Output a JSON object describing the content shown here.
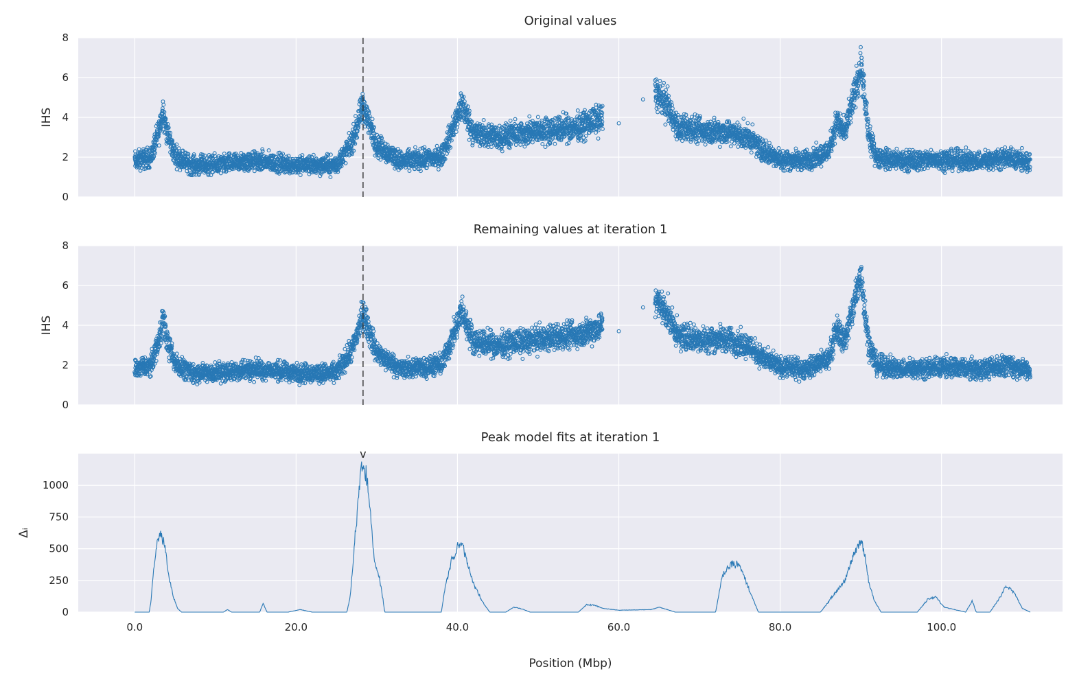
{
  "colors": {
    "series": "#2878b5",
    "background": "#eaeaf2",
    "grid": "#ffffff",
    "marker_line": "#333333"
  },
  "chart_data": [
    {
      "type": "scatter",
      "title": "Original values",
      "xlabel": "",
      "ylabel": "IHS",
      "xlim": [
        -7,
        115
      ],
      "ylim": [
        0,
        8
      ],
      "yticks": [
        "0",
        "2",
        "4",
        "6",
        "8"
      ],
      "grid": true,
      "vline_x": 28.3,
      "segments": [
        {
          "x": [
            0,
            2,
            3,
            3.5,
            4,
            5,
            7,
            10,
            15,
            20,
            25,
            27,
            28.3,
            30,
            33,
            36,
            38,
            40,
            40.5,
            42,
            45,
            50,
            55,
            58
          ],
          "y": [
            1.8,
            2.0,
            3.3,
            4.4,
            3.2,
            2.1,
            1.6,
            1.6,
            1.8,
            1.6,
            1.6,
            2.8,
            4.6,
            2.6,
            1.8,
            1.9,
            2.0,
            4.0,
            4.7,
            3.2,
            3.0,
            3.3,
            3.5,
            4.0
          ]
        },
        {
          "x": [
            64.5,
            66,
            67.5,
            68,
            70,
            73,
            76,
            78,
            80,
            83,
            86,
            87,
            88,
            89,
            90,
            91,
            92,
            95,
            100,
            105,
            108,
            111
          ],
          "y": [
            5.3,
            4.6,
            3.3,
            3.5,
            3.3,
            3.3,
            3.0,
            2.3,
            1.9,
            1.8,
            2.3,
            3.8,
            3.2,
            4.8,
            6.6,
            3.0,
            2.0,
            1.8,
            1.9,
            1.8,
            2.0,
            1.7
          ]
        }
      ]
    },
    {
      "type": "scatter",
      "title": "Remaining values at iteration 1",
      "xlabel": "",
      "ylabel": "IHS",
      "xlim": [
        -7,
        115
      ],
      "ylim": [
        0,
        8
      ],
      "yticks": [
        "0",
        "2",
        "4",
        "6",
        "8"
      ],
      "grid": true,
      "vline_x": 28.3,
      "segments": [
        {
          "x": [
            0,
            2,
            3,
            3.5,
            4,
            5,
            7,
            10,
            15,
            20,
            25,
            27,
            28.3,
            30,
            33,
            36,
            38,
            40,
            40.5,
            42,
            45,
            50,
            55,
            58
          ],
          "y": [
            1.8,
            2.0,
            3.3,
            4.4,
            3.2,
            2.1,
            1.6,
            1.6,
            1.8,
            1.6,
            1.6,
            2.8,
            4.6,
            2.6,
            1.8,
            1.9,
            2.0,
            4.0,
            4.7,
            3.2,
            3.0,
            3.3,
            3.5,
            4.0
          ]
        },
        {
          "x": [
            64.5,
            66,
            67.5,
            68,
            70,
            73,
            76,
            78,
            80,
            83,
            86,
            87,
            88,
            89,
            90,
            91,
            92,
            95,
            100,
            105,
            108,
            111
          ],
          "y": [
            5.3,
            4.6,
            3.3,
            3.5,
            3.3,
            3.3,
            3.0,
            2.3,
            1.9,
            1.8,
            2.3,
            3.8,
            3.2,
            4.8,
            6.6,
            3.0,
            2.0,
            1.8,
            1.9,
            1.8,
            2.0,
            1.7
          ]
        }
      ]
    },
    {
      "type": "line",
      "title": "Peak model fits at iteration 1",
      "xlabel": "Position (Mbp)",
      "ylabel": "Δᵢ",
      "xlim": [
        -7,
        115
      ],
      "ylim": [
        0,
        1250
      ],
      "yticks": [
        "0",
        "250",
        "500",
        "750",
        "1000"
      ],
      "xticks": [
        "0.0",
        "20.0",
        "40.0",
        "60.0",
        "80.0",
        "100.0"
      ],
      "grid": true,
      "peak_marker": {
        "x": 28.3,
        "label": "v"
      },
      "x": [
        0,
        1.8,
        2.0,
        2.3,
        2.8,
        3.3,
        3.8,
        4.3,
        4.8,
        5.3,
        5.8,
        6.0,
        11,
        11.5,
        12,
        15.5,
        15.9,
        16.4,
        19,
        20.5,
        22,
        26.3,
        26.7,
        27.2,
        27.7,
        28.0,
        28.3,
        28.7,
        29.2,
        29.7,
        30.4,
        31,
        33,
        38,
        38.5,
        39.3,
        39.7,
        40.2,
        40.6,
        41.2,
        42,
        43,
        44,
        46,
        47,
        48,
        49,
        52,
        55,
        56,
        57,
        58,
        60,
        64,
        65,
        67,
        72,
        72.8,
        74,
        75,
        76,
        77.3,
        85,
        86.8,
        88,
        89,
        89.6,
        90,
        90.5,
        91,
        91.7,
        92.5,
        97,
        98.3,
        99.3,
        100.3,
        103,
        103.8,
        104.3,
        106,
        107.3,
        108,
        109,
        110,
        111
      ],
      "y": [
        0,
        0,
        80,
        300,
        560,
        640,
        500,
        250,
        120,
        30,
        0,
        0,
        0,
        20,
        0,
        0,
        70,
        0,
        0,
        20,
        0,
        0,
        120,
        500,
        900,
        1080,
        1160,
        1070,
        800,
        420,
        250,
        0,
        0,
        0,
        200,
        420,
        450,
        530,
        540,
        400,
        230,
        90,
        0,
        0,
        40,
        25,
        0,
        0,
        0,
        60,
        55,
        30,
        15,
        20,
        40,
        0,
        0,
        280,
        390,
        370,
        200,
        0,
        0,
        150,
        250,
        420,
        520,
        560,
        450,
        230,
        90,
        0,
        0,
        100,
        120,
        40,
        0,
        90,
        0,
        0,
        120,
        210,
        160,
        30,
        0
      ]
    }
  ]
}
